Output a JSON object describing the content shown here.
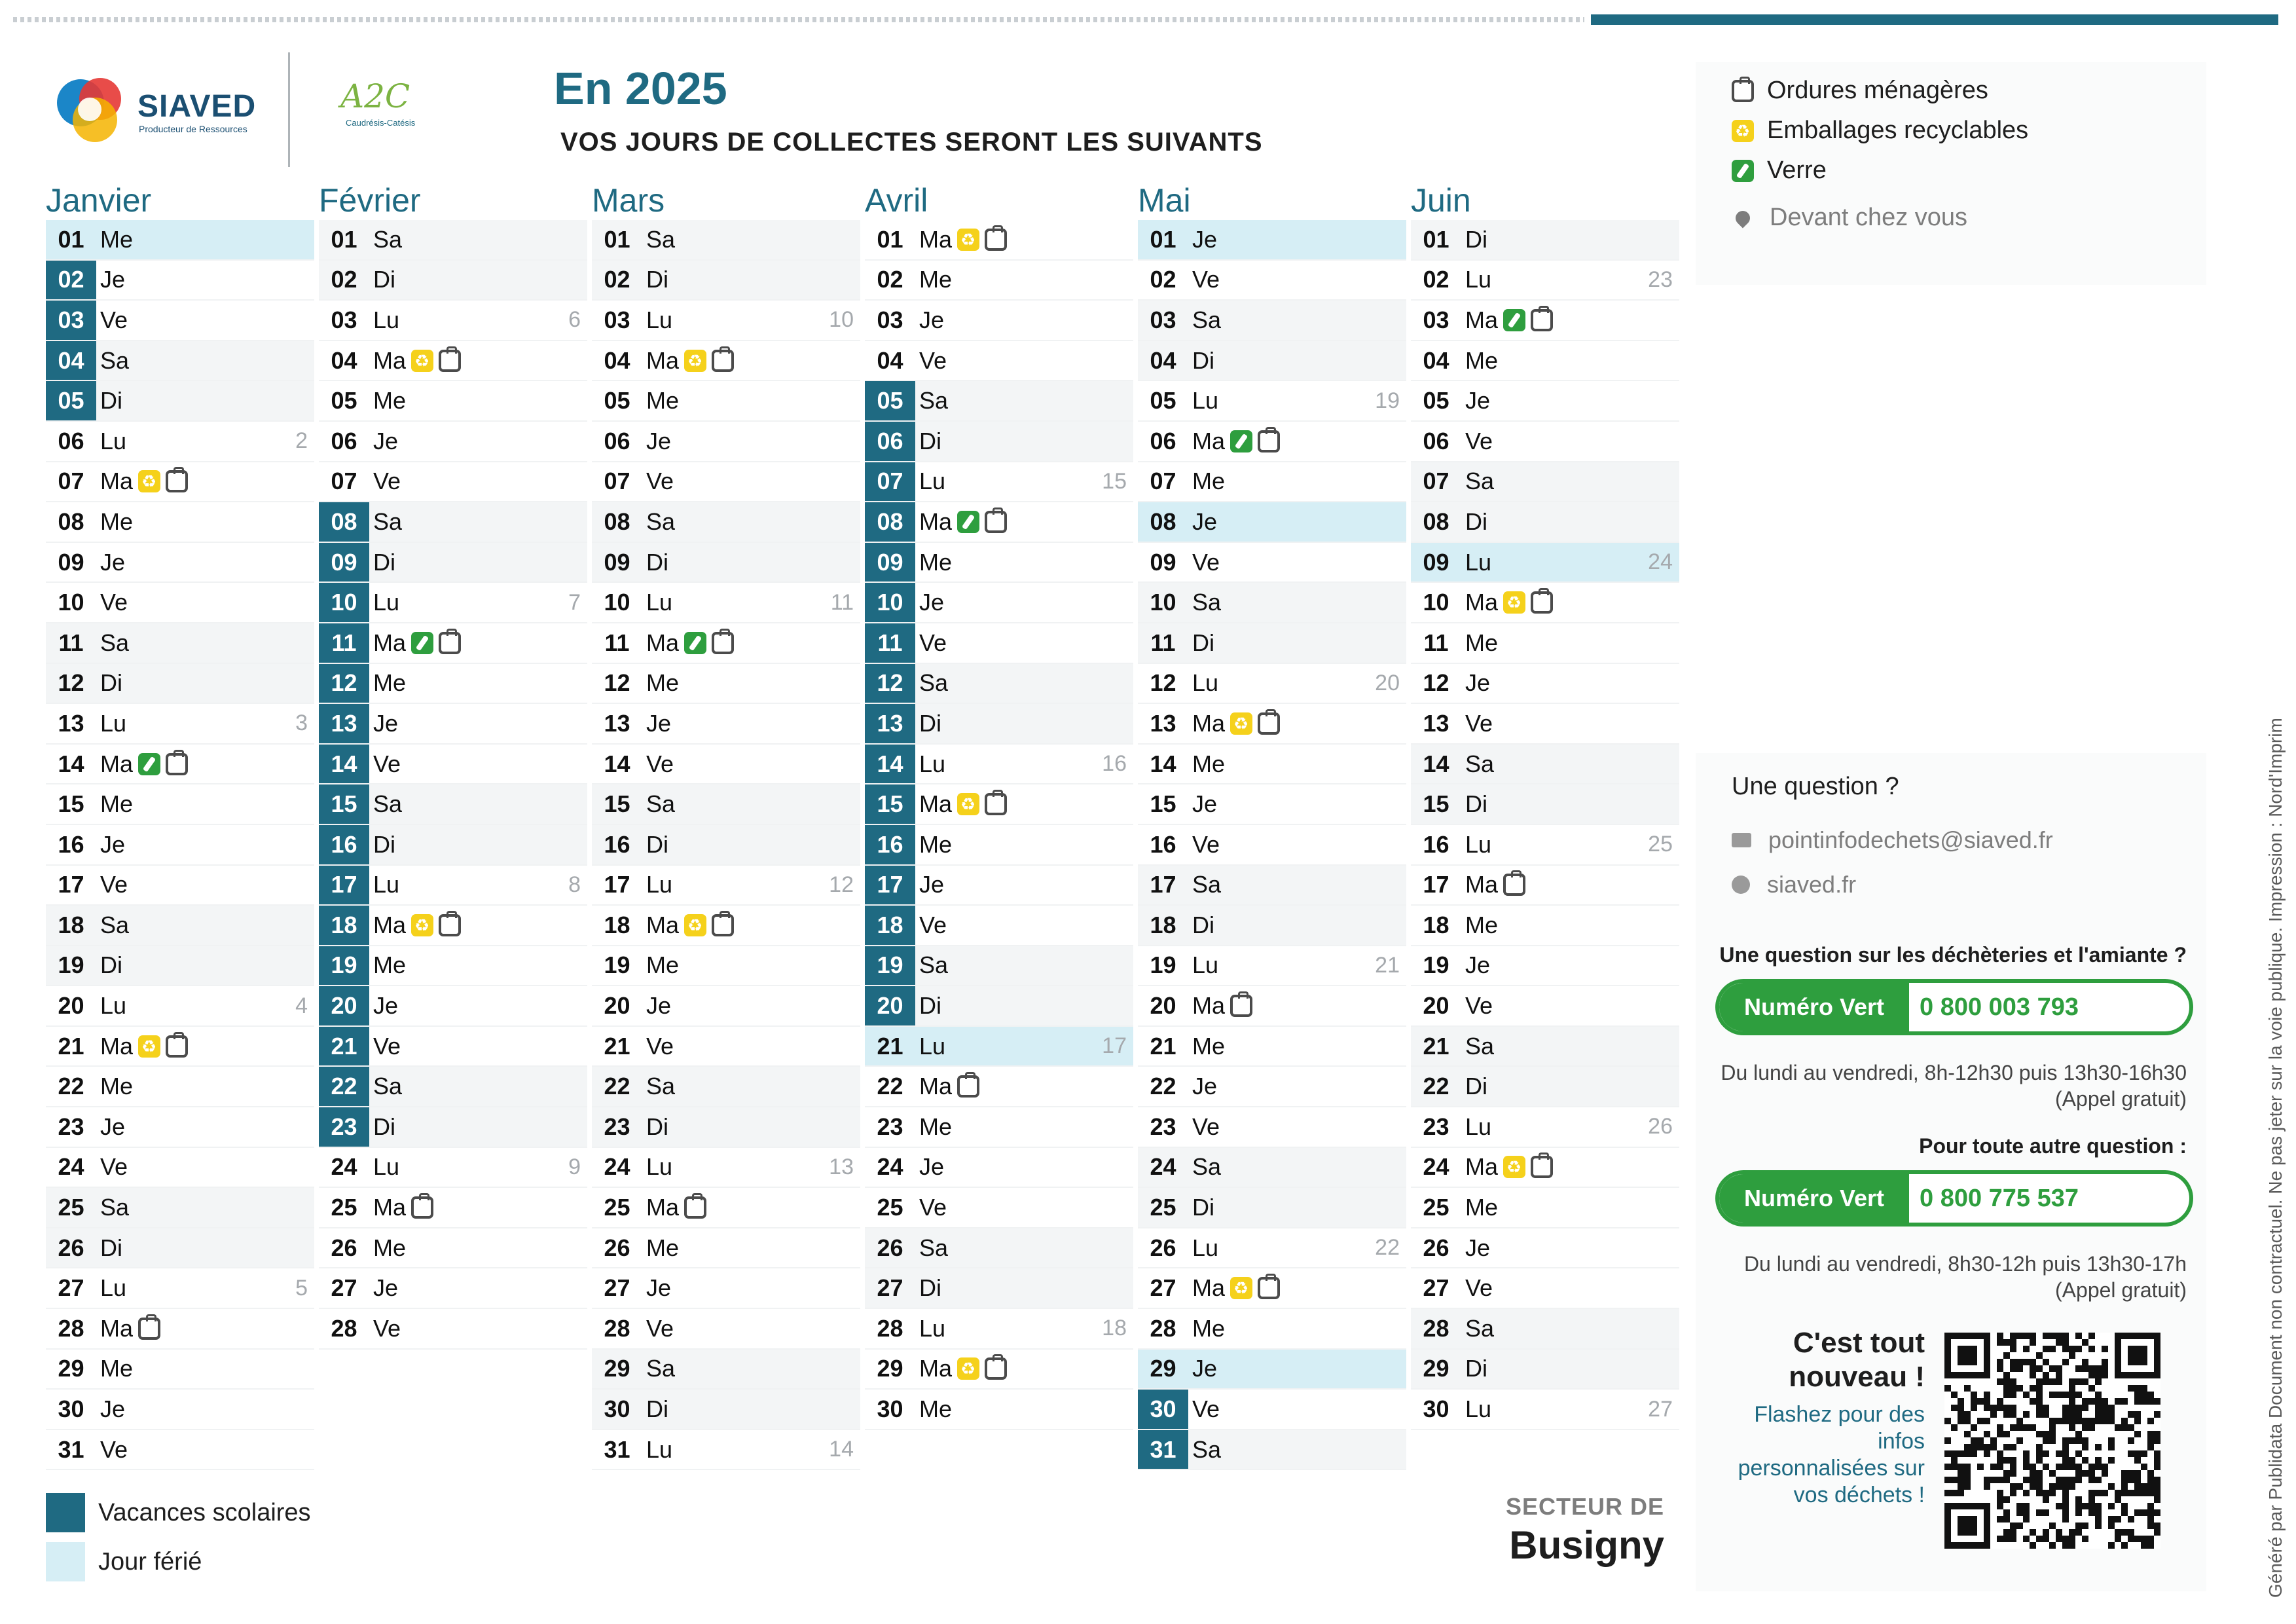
{
  "header": {
    "logo1_name": "SIAVED",
    "logo1_tagline": "Producteur de Ressources",
    "logo2_name": "A2C",
    "logo2_tagline": "Caudrésis-Catésis",
    "title": "En 2025",
    "subtitle": "VOS JOURS DE COLLECTES SERONT LES SUIVANTS"
  },
  "legend": {
    "om": "Ordures ménagères",
    "emb": "Emballages recyclables",
    "ver": "Verre",
    "devant": "Devant chez vous"
  },
  "colors": {
    "accent": "#1f6a82",
    "holiday": "#d6eef5",
    "glass": "#2e9e3e",
    "recycle": "#f5d11b"
  },
  "months": [
    {
      "name": "Janvier",
      "days": [
        {
          "n": "01",
          "d": "Me",
          "hol": true
        },
        {
          "n": "02",
          "d": "Je",
          "vac": true
        },
        {
          "n": "03",
          "d": "Ve",
          "vac": true
        },
        {
          "n": "04",
          "d": "Sa",
          "vac": true
        },
        {
          "n": "05",
          "d": "Di",
          "vac": true
        },
        {
          "n": "06",
          "d": "Lu",
          "wk": "2"
        },
        {
          "n": "07",
          "d": "Ma",
          "ic": [
            "emb",
            "om"
          ]
        },
        {
          "n": "08",
          "d": "Me"
        },
        {
          "n": "09",
          "d": "Je"
        },
        {
          "n": "10",
          "d": "Ve"
        },
        {
          "n": "11",
          "d": "Sa"
        },
        {
          "n": "12",
          "d": "Di"
        },
        {
          "n": "13",
          "d": "Lu",
          "wk": "3"
        },
        {
          "n": "14",
          "d": "Ma",
          "ic": [
            "ver",
            "om"
          ]
        },
        {
          "n": "15",
          "d": "Me"
        },
        {
          "n": "16",
          "d": "Je"
        },
        {
          "n": "17",
          "d": "Ve"
        },
        {
          "n": "18",
          "d": "Sa"
        },
        {
          "n": "19",
          "d": "Di"
        },
        {
          "n": "20",
          "d": "Lu",
          "wk": "4"
        },
        {
          "n": "21",
          "d": "Ma",
          "ic": [
            "emb",
            "om"
          ]
        },
        {
          "n": "22",
          "d": "Me"
        },
        {
          "n": "23",
          "d": "Je"
        },
        {
          "n": "24",
          "d": "Ve"
        },
        {
          "n": "25",
          "d": "Sa"
        },
        {
          "n": "26",
          "d": "Di"
        },
        {
          "n": "27",
          "d": "Lu",
          "wk": "5"
        },
        {
          "n": "28",
          "d": "Ma",
          "ic": [
            "om"
          ]
        },
        {
          "n": "29",
          "d": "Me"
        },
        {
          "n": "30",
          "d": "Je"
        },
        {
          "n": "31",
          "d": "Ve"
        }
      ]
    },
    {
      "name": "Février",
      "days": [
        {
          "n": "01",
          "d": "Sa"
        },
        {
          "n": "02",
          "d": "Di"
        },
        {
          "n": "03",
          "d": "Lu",
          "wk": "6"
        },
        {
          "n": "04",
          "d": "Ma",
          "ic": [
            "emb",
            "om"
          ]
        },
        {
          "n": "05",
          "d": "Me"
        },
        {
          "n": "06",
          "d": "Je"
        },
        {
          "n": "07",
          "d": "Ve"
        },
        {
          "n": "08",
          "d": "Sa",
          "vac": true
        },
        {
          "n": "09",
          "d": "Di",
          "vac": true
        },
        {
          "n": "10",
          "d": "Lu",
          "vac": true,
          "wk": "7"
        },
        {
          "n": "11",
          "d": "Ma",
          "vac": true,
          "ic": [
            "ver",
            "om"
          ]
        },
        {
          "n": "12",
          "d": "Me",
          "vac": true
        },
        {
          "n": "13",
          "d": "Je",
          "vac": true
        },
        {
          "n": "14",
          "d": "Ve",
          "vac": true
        },
        {
          "n": "15",
          "d": "Sa",
          "vac": true
        },
        {
          "n": "16",
          "d": "Di",
          "vac": true
        },
        {
          "n": "17",
          "d": "Lu",
          "vac": true,
          "wk": "8"
        },
        {
          "n": "18",
          "d": "Ma",
          "vac": true,
          "ic": [
            "emb",
            "om"
          ]
        },
        {
          "n": "19",
          "d": "Me",
          "vac": true
        },
        {
          "n": "20",
          "d": "Je",
          "vac": true
        },
        {
          "n": "21",
          "d": "Ve",
          "vac": true
        },
        {
          "n": "22",
          "d": "Sa",
          "vac": true
        },
        {
          "n": "23",
          "d": "Di",
          "vac": true
        },
        {
          "n": "24",
          "d": "Lu",
          "wk": "9"
        },
        {
          "n": "25",
          "d": "Ma",
          "ic": [
            "om"
          ]
        },
        {
          "n": "26",
          "d": "Me"
        },
        {
          "n": "27",
          "d": "Je"
        },
        {
          "n": "28",
          "d": "Ve"
        }
      ]
    },
    {
      "name": "Mars",
      "days": [
        {
          "n": "01",
          "d": "Sa"
        },
        {
          "n": "02",
          "d": "Di"
        },
        {
          "n": "03",
          "d": "Lu",
          "wk": "10"
        },
        {
          "n": "04",
          "d": "Ma",
          "ic": [
            "emb",
            "om"
          ]
        },
        {
          "n": "05",
          "d": "Me"
        },
        {
          "n": "06",
          "d": "Je"
        },
        {
          "n": "07",
          "d": "Ve"
        },
        {
          "n": "08",
          "d": "Sa"
        },
        {
          "n": "09",
          "d": "Di"
        },
        {
          "n": "10",
          "d": "Lu",
          "wk": "11"
        },
        {
          "n": "11",
          "d": "Ma",
          "ic": [
            "ver",
            "om"
          ]
        },
        {
          "n": "12",
          "d": "Me"
        },
        {
          "n": "13",
          "d": "Je"
        },
        {
          "n": "14",
          "d": "Ve"
        },
        {
          "n": "15",
          "d": "Sa"
        },
        {
          "n": "16",
          "d": "Di"
        },
        {
          "n": "17",
          "d": "Lu",
          "wk": "12"
        },
        {
          "n": "18",
          "d": "Ma",
          "ic": [
            "emb",
            "om"
          ]
        },
        {
          "n": "19",
          "d": "Me"
        },
        {
          "n": "20",
          "d": "Je"
        },
        {
          "n": "21",
          "d": "Ve"
        },
        {
          "n": "22",
          "d": "Sa"
        },
        {
          "n": "23",
          "d": "Di"
        },
        {
          "n": "24",
          "d": "Lu",
          "wk": "13"
        },
        {
          "n": "25",
          "d": "Ma",
          "ic": [
            "om"
          ]
        },
        {
          "n": "26",
          "d": "Me"
        },
        {
          "n": "27",
          "d": "Je"
        },
        {
          "n": "28",
          "d": "Ve"
        },
        {
          "n": "29",
          "d": "Sa"
        },
        {
          "n": "30",
          "d": "Di"
        },
        {
          "n": "31",
          "d": "Lu",
          "wk": "14"
        }
      ]
    },
    {
      "name": "Avril",
      "days": [
        {
          "n": "01",
          "d": "Ma",
          "ic": [
            "emb",
            "om"
          ]
        },
        {
          "n": "02",
          "d": "Me"
        },
        {
          "n": "03",
          "d": "Je"
        },
        {
          "n": "04",
          "d": "Ve"
        },
        {
          "n": "05",
          "d": "Sa",
          "vac": true
        },
        {
          "n": "06",
          "d": "Di",
          "vac": true
        },
        {
          "n": "07",
          "d": "Lu",
          "vac": true,
          "wk": "15"
        },
        {
          "n": "08",
          "d": "Ma",
          "vac": true,
          "ic": [
            "ver",
            "om"
          ]
        },
        {
          "n": "09",
          "d": "Me",
          "vac": true
        },
        {
          "n": "10",
          "d": "Je",
          "vac": true
        },
        {
          "n": "11",
          "d": "Ve",
          "vac": true
        },
        {
          "n": "12",
          "d": "Sa",
          "vac": true
        },
        {
          "n": "13",
          "d": "Di",
          "vac": true
        },
        {
          "n": "14",
          "d": "Lu",
          "vac": true,
          "wk": "16"
        },
        {
          "n": "15",
          "d": "Ma",
          "vac": true,
          "ic": [
            "emb",
            "om"
          ]
        },
        {
          "n": "16",
          "d": "Me",
          "vac": true
        },
        {
          "n": "17",
          "d": "Je",
          "vac": true
        },
        {
          "n": "18",
          "d": "Ve",
          "vac": true
        },
        {
          "n": "19",
          "d": "Sa",
          "vac": true
        },
        {
          "n": "20",
          "d": "Di",
          "vac": true
        },
        {
          "n": "21",
          "d": "Lu",
          "hol": true,
          "wk": "17"
        },
        {
          "n": "22",
          "d": "Ma",
          "ic": [
            "om"
          ]
        },
        {
          "n": "23",
          "d": "Me"
        },
        {
          "n": "24",
          "d": "Je"
        },
        {
          "n": "25",
          "d": "Ve"
        },
        {
          "n": "26",
          "d": "Sa"
        },
        {
          "n": "27",
          "d": "Di"
        },
        {
          "n": "28",
          "d": "Lu",
          "wk": "18"
        },
        {
          "n": "29",
          "d": "Ma",
          "ic": [
            "emb",
            "om"
          ]
        },
        {
          "n": "30",
          "d": "Me"
        }
      ]
    },
    {
      "name": "Mai",
      "days": [
        {
          "n": "01",
          "d": "Je",
          "hol": true
        },
        {
          "n": "02",
          "d": "Ve"
        },
        {
          "n": "03",
          "d": "Sa"
        },
        {
          "n": "04",
          "d": "Di"
        },
        {
          "n": "05",
          "d": "Lu",
          "wk": "19"
        },
        {
          "n": "06",
          "d": "Ma",
          "ic": [
            "ver",
            "om"
          ]
        },
        {
          "n": "07",
          "d": "Me"
        },
        {
          "n": "08",
          "d": "Je",
          "hol": true
        },
        {
          "n": "09",
          "d": "Ve"
        },
        {
          "n": "10",
          "d": "Sa"
        },
        {
          "n": "11",
          "d": "Di"
        },
        {
          "n": "12",
          "d": "Lu",
          "wk": "20"
        },
        {
          "n": "13",
          "d": "Ma",
          "ic": [
            "emb",
            "om"
          ]
        },
        {
          "n": "14",
          "d": "Me"
        },
        {
          "n": "15",
          "d": "Je"
        },
        {
          "n": "16",
          "d": "Ve"
        },
        {
          "n": "17",
          "d": "Sa"
        },
        {
          "n": "18",
          "d": "Di"
        },
        {
          "n": "19",
          "d": "Lu",
          "wk": "21"
        },
        {
          "n": "20",
          "d": "Ma",
          "ic": [
            "om"
          ]
        },
        {
          "n": "21",
          "d": "Me"
        },
        {
          "n": "22",
          "d": "Je"
        },
        {
          "n": "23",
          "d": "Ve"
        },
        {
          "n": "24",
          "d": "Sa"
        },
        {
          "n": "25",
          "d": "Di"
        },
        {
          "n": "26",
          "d": "Lu",
          "wk": "22"
        },
        {
          "n": "27",
          "d": "Ma",
          "ic": [
            "emb",
            "om"
          ]
        },
        {
          "n": "28",
          "d": "Me"
        },
        {
          "n": "29",
          "d": "Je",
          "hol": true
        },
        {
          "n": "30",
          "d": "Ve",
          "vac": true
        },
        {
          "n": "31",
          "d": "Sa",
          "vac": true
        }
      ]
    },
    {
      "name": "Juin",
      "days": [
        {
          "n": "01",
          "d": "Di"
        },
        {
          "n": "02",
          "d": "Lu",
          "wk": "23"
        },
        {
          "n": "03",
          "d": "Ma",
          "ic": [
            "ver",
            "om"
          ]
        },
        {
          "n": "04",
          "d": "Me"
        },
        {
          "n": "05",
          "d": "Je"
        },
        {
          "n": "06",
          "d": "Ve"
        },
        {
          "n": "07",
          "d": "Sa"
        },
        {
          "n": "08",
          "d": "Di"
        },
        {
          "n": "09",
          "d": "Lu",
          "hol": true,
          "wk": "24"
        },
        {
          "n": "10",
          "d": "Ma",
          "ic": [
            "emb",
            "om"
          ]
        },
        {
          "n": "11",
          "d": "Me"
        },
        {
          "n": "12",
          "d": "Je"
        },
        {
          "n": "13",
          "d": "Ve"
        },
        {
          "n": "14",
          "d": "Sa"
        },
        {
          "n": "15",
          "d": "Di"
        },
        {
          "n": "16",
          "d": "Lu",
          "wk": "25"
        },
        {
          "n": "17",
          "d": "Ma",
          "ic": [
            "om"
          ]
        },
        {
          "n": "18",
          "d": "Me"
        },
        {
          "n": "19",
          "d": "Je"
        },
        {
          "n": "20",
          "d": "Ve"
        },
        {
          "n": "21",
          "d": "Sa"
        },
        {
          "n": "22",
          "d": "Di"
        },
        {
          "n": "23",
          "d": "Lu",
          "wk": "26"
        },
        {
          "n": "24",
          "d": "Ma",
          "ic": [
            "emb",
            "om"
          ]
        },
        {
          "n": "25",
          "d": "Me"
        },
        {
          "n": "26",
          "d": "Je"
        },
        {
          "n": "27",
          "d": "Ve"
        },
        {
          "n": "28",
          "d": "Sa"
        },
        {
          "n": "29",
          "d": "Di"
        },
        {
          "n": "30",
          "d": "Lu",
          "wk": "27"
        }
      ]
    }
  ],
  "panel": {
    "question": "Une question ?",
    "email": "pointinfodechets@siaved.fr",
    "website": "siaved.fr",
    "q_decheteries": "Une question sur les déchèteries et l'amiante ?",
    "nv_label": "Numéro Vert",
    "nv1": "0 800 003 793",
    "hours1_a": "Du lundi au vendredi, 8h-12h30 puis 13h30-16h30",
    "hours1_b": "(Appel gratuit)",
    "q_autre": "Pour toute autre question :",
    "nv2": "0 800 775 537",
    "hours2_a": "Du lundi au vendredi, 8h30-12h puis 13h30-17h",
    "hours2_b": "(Appel gratuit)",
    "news_a": "C'est tout",
    "news_b": "nouveau !",
    "flash": "Flashez pour des infos personnalisées sur vos déchets !"
  },
  "key": {
    "vacances": "Vacances scolaires",
    "ferie": "Jour férié"
  },
  "sector": {
    "label": "SECTEUR DE",
    "town": "Busigny"
  },
  "footer": {
    "vertical_text": "Généré par  Publidata  Document non contractuel. Ne pas jeter sur la voie publique. Impression : Nord'Imprim"
  }
}
